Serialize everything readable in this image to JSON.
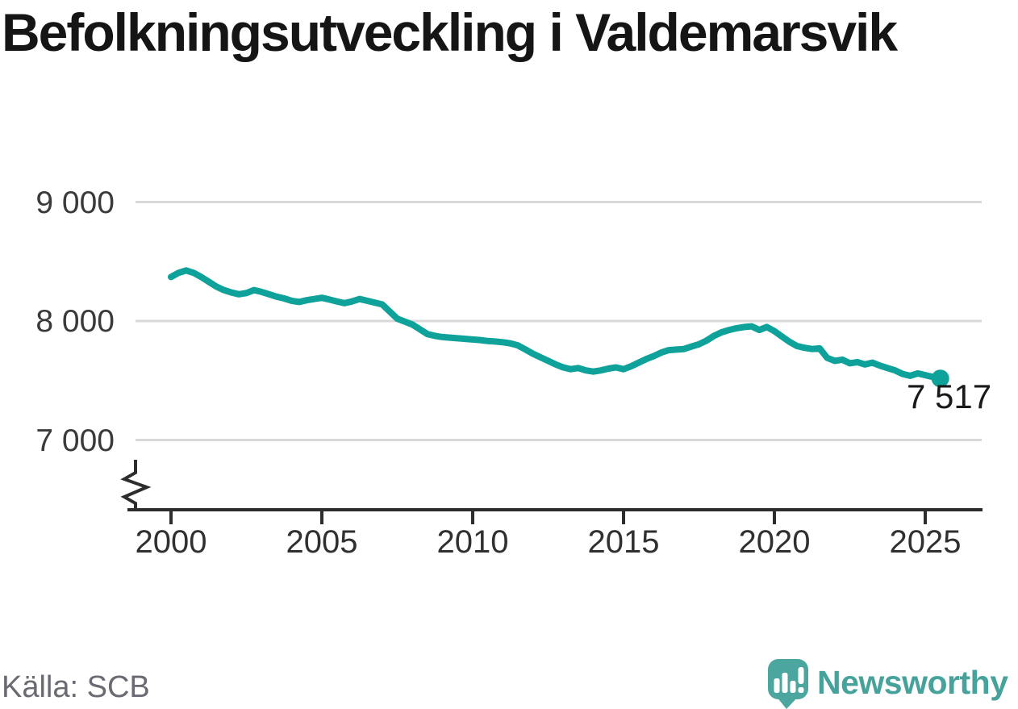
{
  "title": "Befolkningsutveckling i Valdemarsvik",
  "source": "Källa: SCB",
  "branding": {
    "name": "Newsworthy",
    "icon": "newsworthy-speech-bubble-bar-chart-icon"
  },
  "colors": {
    "line": "#0ea29a",
    "end_dot": "#0ea29a",
    "gridline": "#d9d9d9",
    "axis": "#2d2d2d",
    "title_text": "#151515",
    "tick_text": "#333333",
    "source_text": "#6a6a72",
    "brand_teal": "#46a29a"
  },
  "chart_data": {
    "type": "line",
    "title": "Befolkningsutveckling i Valdemarsvik",
    "xlabel": "",
    "ylabel": "",
    "grid": "horizontal",
    "legend": "none",
    "last_point_label": "7 517",
    "last_point_value": 7517,
    "y_axis": {
      "ticks": [
        9000,
        8000,
        7000
      ],
      "tick_labels": [
        "9 000",
        "8 000",
        "7 000"
      ],
      "broken_axis": true
    },
    "x_axis": {
      "ticks": [
        2000,
        2005,
        2010,
        2015,
        2020,
        2025
      ],
      "tick_labels": [
        "2000",
        "2005",
        "2010",
        "2015",
        "2020",
        "2025"
      ]
    },
    "x_start": 2000.0,
    "x_step_years": 0.25,
    "x_end": 2025.5,
    "values": [
      8370,
      8405,
      8425,
      8405,
      8370,
      8330,
      8290,
      8260,
      8240,
      8225,
      8235,
      8260,
      8245,
      8225,
      8205,
      8190,
      8170,
      8160,
      8175,
      8185,
      8195,
      8180,
      8165,
      8150,
      8165,
      8185,
      8170,
      8155,
      8140,
      8080,
      8020,
      7995,
      7970,
      7930,
      7890,
      7875,
      7865,
      7860,
      7855,
      7850,
      7845,
      7840,
      7832,
      7828,
      7822,
      7812,
      7795,
      7760,
      7725,
      7695,
      7665,
      7635,
      7610,
      7595,
      7605,
      7585,
      7575,
      7585,
      7600,
      7610,
      7595,
      7620,
      7650,
      7680,
      7705,
      7735,
      7755,
      7760,
      7765,
      7785,
      7805,
      7835,
      7875,
      7905,
      7925,
      7940,
      7950,
      7955,
      7925,
      7950,
      7915,
      7870,
      7825,
      7790,
      7775,
      7765,
      7770,
      7690,
      7665,
      7675,
      7645,
      7655,
      7635,
      7650,
      7625,
      7605,
      7585,
      7555,
      7540,
      7560,
      7545,
      7530,
      7517
    ]
  }
}
